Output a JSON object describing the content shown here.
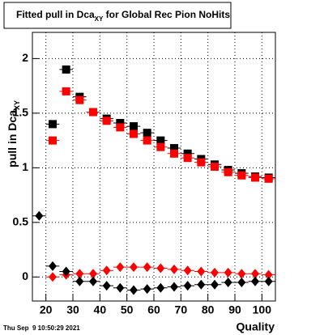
{
  "chart_data": {
    "type": "scatter",
    "title": [
      "Fitted pull in Dca",
      "XY",
      " for Global Rec Pion NoHits"
    ],
    "ylabel": [
      "pull in Dca",
      "XY"
    ],
    "xlabel": "Quality",
    "footer": "Thu Sep  9 10:50:29 2021",
    "x": [
      17.5,
      22.5,
      27.5,
      32.5,
      37.5,
      42.5,
      47.5,
      52.5,
      57.5,
      62.5,
      67.5,
      72.5,
      77.5,
      82.5,
      87.5,
      92.5,
      97.5,
      102.5
    ],
    "series": [
      {
        "marker": "square",
        "color": "#000000",
        "values": [
          null,
          1.4,
          1.9,
          1.65,
          1.51,
          1.45,
          1.41,
          1.38,
          1.32,
          1.25,
          1.18,
          1.13,
          1.08,
          1.03,
          0.98,
          0.95,
          0.92,
          0.91
        ]
      },
      {
        "marker": "square",
        "color": "#ff0000",
        "values": [
          null,
          1.25,
          1.7,
          1.62,
          1.51,
          1.43,
          1.37,
          1.31,
          1.25,
          1.19,
          1.13,
          1.09,
          1.05,
          1.01,
          0.96,
          0.93,
          0.91,
          0.9
        ]
      },
      {
        "marker": "diamond",
        "color": "#ff0000",
        "values": [
          null,
          0.0,
          0.02,
          0.03,
          0.03,
          0.06,
          0.09,
          0.09,
          0.09,
          0.08,
          0.07,
          0.06,
          0.05,
          0.04,
          0.04,
          0.03,
          0.03,
          0.02
        ]
      },
      {
        "marker": "diamond",
        "color": "#000000",
        "values": [
          0.56,
          0.1,
          0.05,
          -0.04,
          -0.04,
          -0.08,
          -0.1,
          -0.12,
          -0.11,
          -0.1,
          -0.09,
          -0.08,
          -0.07,
          -0.07,
          -0.05,
          -0.05,
          -0.04,
          -0.04
        ]
      }
    ],
    "xlim": [
      15,
      105
    ],
    "ylim": [
      -0.22,
      2.24
    ],
    "xticks": [
      20,
      30,
      40,
      50,
      60,
      70,
      80,
      90,
      100
    ],
    "yticks": [
      0,
      0.5,
      1,
      1.5,
      2
    ],
    "grid": true
  }
}
